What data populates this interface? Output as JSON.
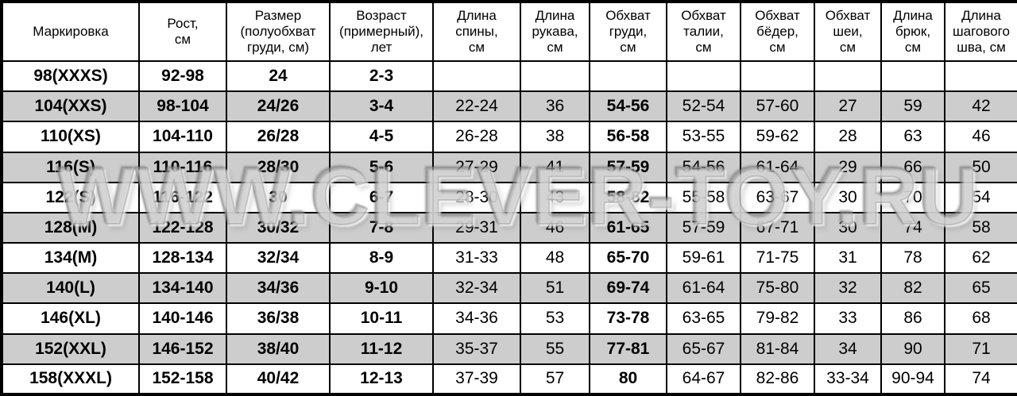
{
  "watermark": {
    "text": "WWW.CLEVER-TOY.RU"
  },
  "colors": {
    "stripe_row": "#cdcdcd",
    "border": "#000000",
    "background": "#ffffff",
    "text": "#000000"
  },
  "table": {
    "headers": [
      "Маркировка",
      "Рост,\nсм",
      "Размер\n(полуобхват\nгруди, см)",
      "Возраст\n(примерный),\nлет",
      "Длина\nспины,\nсм",
      "Длина\nрукава,\nсм",
      "Обхват\nгруди,\nсм",
      "Обхват\nталии,\nсм",
      "Обхват\nбёдер,\nсм",
      "Обхват\nшеи,\nсм",
      "Длина\nбрюк,\nсм",
      "Длина\nшагового\nшва, см"
    ],
    "rows": [
      [
        "98(XXXS)",
        "92-98",
        "24",
        "2-3",
        "",
        "",
        "",
        "",
        "",
        "",
        "",
        ""
      ],
      [
        "104(XXS)",
        "98-104",
        "24/26",
        "3-4",
        "22-24",
        "36",
        "54-56",
        "52-54",
        "57-60",
        "27",
        "59",
        "42"
      ],
      [
        "110(XS)",
        "104-110",
        "26/28",
        "4-5",
        "26-28",
        "38",
        "56-58",
        "53-55",
        "59-62",
        "28",
        "63",
        "46"
      ],
      [
        "116(S)",
        "110-116",
        "28/30",
        "5-6",
        "27-29",
        "41",
        "57-59",
        "54-56",
        "61-64",
        "29",
        "66",
        "50"
      ],
      [
        "122(S)",
        "116-122",
        "30",
        "6-7",
        "28-30",
        "43",
        "58-62",
        "55-58",
        "63-67",
        "30",
        "70",
        "54"
      ],
      [
        "128(M)",
        "122-128",
        "30/32",
        "7-8",
        "29-31",
        "46",
        "61-65",
        "57-59",
        "67-71",
        "30",
        "74",
        "58"
      ],
      [
        "134(M)",
        "128-134",
        "32/34",
        "8-9",
        "31-33",
        "48",
        "65-70",
        "59-61",
        "71-75",
        "31",
        "78",
        "62"
      ],
      [
        "140(L)",
        "134-140",
        "34/36",
        "9-10",
        "32-34",
        "51",
        "69-74",
        "61-64",
        "75-80",
        "32",
        "82",
        "65"
      ],
      [
        "146(XL)",
        "140-146",
        "36/38",
        "10-11",
        "34-36",
        "53",
        "73-78",
        "63-65",
        "79-82",
        "33",
        "86",
        "68"
      ],
      [
        "152(XXL)",
        "146-152",
        "38/40",
        "11-12",
        "35-37",
        "55",
        "77-81",
        "65-67",
        "81-84",
        "34",
        "90",
        "71"
      ],
      [
        "158(XXXL)",
        "152-158",
        "40/42",
        "12-13",
        "37-39",
        "57",
        "80",
        "64-67",
        "82-86",
        "33-34",
        "90-94",
        "74"
      ]
    ]
  }
}
